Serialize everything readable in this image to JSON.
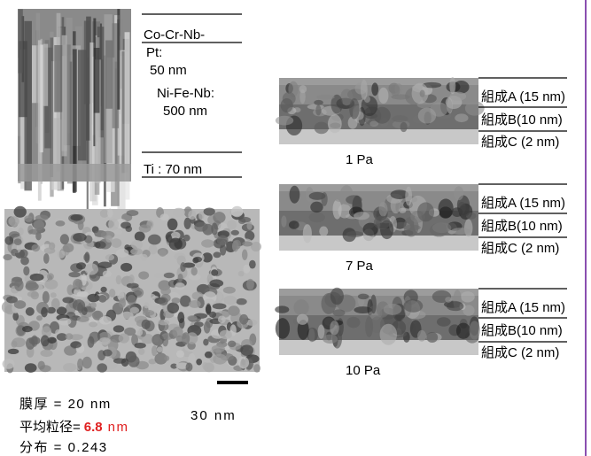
{
  "film_stack": {
    "top_layer": "Co-Cr-Nb-",
    "top_layer_cont": "Pt:",
    "top_thickness": "50 nm",
    "mid_layer": "Ni-Fe-Nb:",
    "mid_thickness": "500 nm",
    "bottom_layer": "Ti : 70 nm"
  },
  "plan_view": {
    "scale_bar": "30 nm",
    "thickness": "膜厚 = 20 nm",
    "grain_size_label": "平均粒径=",
    "grain_size_value": "6.8",
    "grain_size_unit": "nm",
    "distribution": "分布 = 0.243"
  },
  "cross_sections": [
    {
      "pressure": "1 Pa",
      "layers": [
        "組成A (15 nm)",
        "組成B(10 nm)",
        "組成C (2 nm)"
      ]
    },
    {
      "pressure": "7 Pa",
      "layers": [
        "組成A (15 nm)",
        "組成B(10 nm)",
        "組成C (2 nm)"
      ]
    },
    {
      "pressure": "10 Pa",
      "layers": [
        "組成A (15 nm)",
        "組成B(10 nm)",
        "組成C (2 nm)"
      ]
    }
  ]
}
